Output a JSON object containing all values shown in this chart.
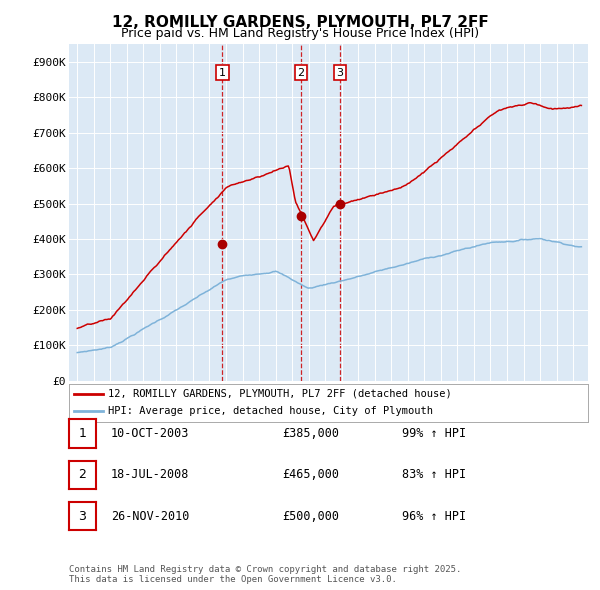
{
  "title": "12, ROMILLY GARDENS, PLYMOUTH, PL7 2FF",
  "subtitle": "Price paid vs. HM Land Registry's House Price Index (HPI)",
  "title_fontsize": 11,
  "subtitle_fontsize": 9,
  "plot_bg_color": "#dce9f5",
  "fig_bg_color": "#ffffff",
  "red_line_color": "#cc0000",
  "blue_line_color": "#7fb3d9",
  "marker_color": "#aa0000",
  "vline_color": "#cc0000",
  "ylim": [
    0,
    950000
  ],
  "yticks": [
    0,
    100000,
    200000,
    300000,
    400000,
    500000,
    600000,
    700000,
    800000,
    900000
  ],
  "ytick_labels": [
    "£0",
    "£100K",
    "£200K",
    "£300K",
    "£400K",
    "£500K",
    "£600K",
    "£700K",
    "£800K",
    "£900K"
  ],
  "legend_label_red": "12, ROMILLY GARDENS, PLYMOUTH, PL7 2FF (detached house)",
  "legend_label_blue": "HPI: Average price, detached house, City of Plymouth",
  "sale_points": [
    {
      "label": "1",
      "date_x": 2003.78,
      "price": 385000,
      "date_str": "10-OCT-2003",
      "price_str": "£385,000",
      "pct": "99%",
      "arrow": "↑"
    },
    {
      "label": "2",
      "date_x": 2008.54,
      "price": 465000,
      "date_str": "18-JUL-2008",
      "price_str": "£465,000",
      "pct": "83%",
      "arrow": "↑"
    },
    {
      "label": "3",
      "date_x": 2010.9,
      "price": 500000,
      "date_str": "26-NOV-2010",
      "price_str": "£500,000",
      "pct": "96%",
      "arrow": "↑"
    }
  ],
  "footer_text": "Contains HM Land Registry data © Crown copyright and database right 2025.\nThis data is licensed under the Open Government Licence v3.0.",
  "grid_color": "#ffffff",
  "box_edge_color": "#cc0000",
  "xlim_left": 1994.5,
  "xlim_right": 2025.9
}
